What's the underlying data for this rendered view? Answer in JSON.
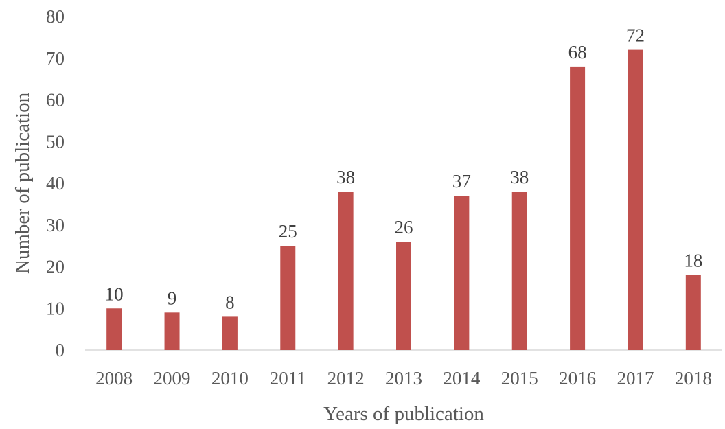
{
  "chart_data": {
    "type": "bar",
    "title": "",
    "xlabel": "Years of publication",
    "ylabel": "Number  of publication",
    "categories": [
      "2008",
      "2009",
      "2010",
      "2011",
      "2012",
      "2013",
      "2014",
      "2015",
      "2016",
      "2017",
      "2018"
    ],
    "values": [
      10,
      9,
      8,
      25,
      38,
      26,
      37,
      38,
      68,
      72,
      18
    ],
    "ylim": [
      0,
      80
    ],
    "yticks": [
      0,
      10,
      20,
      30,
      40,
      50,
      60,
      70,
      80
    ],
    "grid": false,
    "data_labels": true,
    "bar_color": "#C0504D"
  }
}
